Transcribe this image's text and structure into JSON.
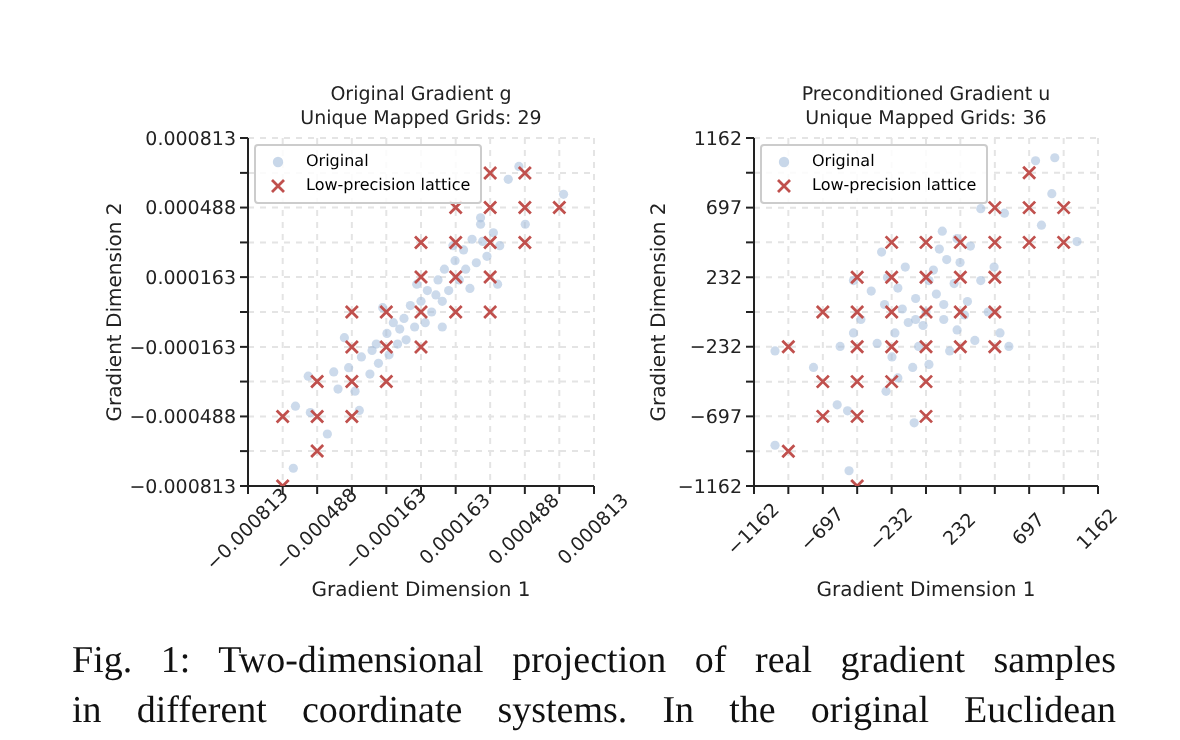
{
  "chart_data": [
    {
      "type": "scatter",
      "title": "Original Gradient g",
      "subtitle": "Unique Mapped Grids: 29",
      "xlabel": "Gradient Dimension 1",
      "ylabel": "Gradient Dimension 2",
      "xlim": [
        -0.000813,
        0.000813
      ],
      "ylim": [
        -0.000813,
        0.000813
      ],
      "xticks": [
        {
          "value": -0.000813,
          "label": "−0.000813"
        },
        {
          "value": -0.00065,
          "label": null
        },
        {
          "value": -0.000488,
          "label": "−0.000488"
        },
        {
          "value": -0.000325,
          "label": null
        },
        {
          "value": -0.000163,
          "label": "−0.000163"
        },
        {
          "value": 0,
          "label": null
        },
        {
          "value": 0.000163,
          "label": "0.000163"
        },
        {
          "value": 0.000325,
          "label": null
        },
        {
          "value": 0.000488,
          "label": "0.000488"
        },
        {
          "value": 0.00065,
          "label": null
        },
        {
          "value": 0.000813,
          "label": "0.000813"
        }
      ],
      "yticks": [
        {
          "value": -0.000813,
          "label": "−0.000813"
        },
        {
          "value": -0.00065,
          "label": null
        },
        {
          "value": -0.000488,
          "label": "−0.000488"
        },
        {
          "value": -0.000325,
          "label": null
        },
        {
          "value": -0.000163,
          "label": "−0.000163"
        },
        {
          "value": 0,
          "label": null
        },
        {
          "value": 0.000163,
          "label": "0.000163"
        },
        {
          "value": 0.000325,
          "label": null
        },
        {
          "value": 0.000488,
          "label": "0.000488"
        },
        {
          "value": 0.00065,
          "label": null
        },
        {
          "value": 0.000813,
          "label": "0.000813"
        }
      ],
      "grid": true,
      "legend": "top left",
      "series": [
        {
          "name": "Original",
          "color": "#a3bcdb",
          "marker": "circle",
          "x": [
            -0.0006,
            -0.00059,
            -0.00052,
            -0.00044,
            -0.00053,
            -0.00041,
            0.00067,
            0.00046,
            0.00049,
            0.00041,
            0.00028,
            -0.00039,
            -0.00034,
            -0.00031,
            -0.00028,
            -0.00024,
            -0.00021,
            -0.0002,
            -0.00016,
            -0.00015,
            -0.00013,
            -0.00011,
            -8e-05,
            -7e-05,
            -5e-05,
            -3e-05,
            0,
            2e-05,
            3e-05,
            5e-05,
            8e-05,
            0.0001,
            0.00011,
            0.00013,
            0.00016,
            0.00018,
            0.0002,
            0.00021,
            0.00024,
            0.00026,
            0.00029,
            0.00031,
            0.00034,
            0.00037,
            7e-05,
            -0.0001,
            -0.00023,
            0.00023,
            0.00015,
            -2e-05,
            -0.00018,
            0.0001,
            -0.00036,
            0.00036,
            -0.00029,
            0.00028
          ],
          "values": [
            -0.00073,
            -0.00044,
            -0.00047,
            -0.00057,
            -0.0003,
            -0.00028,
            0.00055,
            0.00068,
            0.00041,
            0.00062,
            0.00041,
            -0.00036,
            -0.00026,
            -0.00037,
            -0.00021,
            -0.00029,
            -0.00015,
            -0.00024,
            -0.0001,
            -0.0002,
            -5e-05,
            -0.00015,
            -3e-05,
            -0.00013,
            3e-05,
            -7e-05,
            5e-05,
            -5e-05,
            0.0001,
            0,
            0.00015,
            5e-05,
            0.0002,
            0.0001,
            0.00024,
            0.00015,
            0.00029,
            0.0002,
            0.00034,
            0.00023,
            0.00033,
            0.00026,
            0.00037,
            0.00031,
            8e-05,
            -8e-05,
            -0.00018,
            0.00011,
            0.00031,
            0.00013,
            2e-05,
            -7e-05,
            -0.00012,
            0.00013,
            -0.00046,
            0.00044
          ]
        },
        {
          "name": "Low-precision lattice",
          "color": "#c0504d",
          "marker": "cross",
          "x": [
            0.000325,
            0.000488,
            0.000163,
            0.000325,
            0.000488,
            0.00065,
            0,
            0.000163,
            0.000325,
            0.000488,
            0,
            0.000163,
            0.000325,
            -0.000325,
            -0.000163,
            0,
            0.000163,
            0.000325,
            -0.000325,
            -0.000163,
            0,
            -0.000488,
            -0.000325,
            -0.000163,
            -0.00065,
            -0.000488,
            -0.000325,
            -0.000488,
            -0.00065
          ],
          "values": [
            0.00065,
            0.00065,
            0.000488,
            0.000488,
            0.000488,
            0.000488,
            0.000325,
            0.000325,
            0.000325,
            0.000325,
            0.000163,
            0.000163,
            0.000163,
            0,
            0,
            0,
            0,
            0,
            -0.000163,
            -0.000163,
            -0.000163,
            -0.000325,
            -0.000325,
            -0.000325,
            -0.000488,
            -0.000488,
            -0.000488,
            -0.00065,
            -0.000813
          ]
        }
      ],
      "annotations": [
        "Fig. 1: Two-dimensional projection of real gradient samples in different coordinate systems. In the original Euclidean"
      ]
    },
    {
      "type": "scatter",
      "title": "Preconditioned Gradient u",
      "subtitle": "Unique Mapped Grids: 36",
      "xlabel": "Gradient Dimension 1",
      "ylabel": "Gradient Dimension 2",
      "xlim": [
        -1162,
        1162
      ],
      "ylim": [
        -1162,
        1162
      ],
      "xticks": [
        {
          "value": -1162,
          "label": "−1162"
        },
        {
          "value": -930,
          "label": null
        },
        {
          "value": -697,
          "label": "−697"
        },
        {
          "value": -465,
          "label": null
        },
        {
          "value": -232,
          "label": "−232"
        },
        {
          "value": 0,
          "label": null
        },
        232,
        {
          "value": 465,
          "label": null
        },
        697,
        {
          "value": 930,
          "label": null
        },
        1162
      ],
      "yticks": [
        {
          "value": -1162,
          "label": "−1162"
        },
        {
          "value": -930,
          "label": null
        },
        {
          "value": -697,
          "label": "−697"
        },
        {
          "value": -465,
          "label": null
        },
        {
          "value": -232,
          "label": "−232"
        },
        {
          "value": 0,
          "label": null
        },
        232,
        {
          "value": 465,
          "label": null
        },
        697,
        {
          "value": 930,
          "label": null
        },
        1162
      ],
      "grid": true,
      "legend": "top left",
      "series": [
        {
          "name": "Original",
          "color": "#a3bcdb",
          "marker": "circle",
          "x": [
            -1020,
            -1020,
            -760,
            -600,
            -530,
            -520,
            -580,
            -490,
            740,
            870,
            850,
            780,
            530,
            370,
            1020,
            560,
            500,
            110,
            -80,
            -270,
            0,
            70,
            -70,
            120,
            -120,
            190,
            -190,
            210,
            -210,
            50,
            -50,
            280,
            -280,
            140,
            -140,
            330,
            -330,
            20,
            370,
            -370,
            90,
            -90,
            230,
            -230,
            420,
            -440,
            160,
            -160,
            20,
            -20,
            260,
            -260,
            120,
            -70,
            460,
            -490,
            300,
            -300,
            210,
            -190
          ],
          "values": [
            -260,
            -890,
            -370,
            -620,
            -660,
            -1060,
            -230,
            -140,
            1010,
            1030,
            790,
            580,
            660,
            690,
            470,
            -230,
            -140,
            540,
            -740,
            -530,
            0,
            120,
            90,
            -50,
            -70,
            190,
            160,
            -120,
            -140,
            280,
            -230,
            70,
            50,
            350,
            300,
            -190,
            -210,
            -350,
            210,
            140,
            420,
            -370,
            330,
            -300,
            0,
            -50,
            -260,
            20,
            210,
            -90,
            -20,
            230,
            50,
            -50,
            300,
            210,
            440,
            400,
            490,
            -440
          ]
        },
        {
          "name": "Low-precision lattice",
          "color": "#c0504d",
          "marker": "cross",
          "x": [
            697,
            465,
            697,
            930,
            -232,
            0,
            232,
            465,
            697,
            930,
            -465,
            -232,
            0,
            232,
            465,
            -697,
            -465,
            -232,
            0,
            232,
            465,
            -930,
            -465,
            -232,
            0,
            232,
            465,
            -697,
            -465,
            -232,
            0,
            -697,
            -465,
            0,
            -930,
            -465
          ],
          "values": [
            930,
            697,
            697,
            697,
            465,
            465,
            465,
            465,
            465,
            465,
            232,
            232,
            232,
            232,
            232,
            0,
            0,
            0,
            0,
            0,
            0,
            -232,
            -232,
            -232,
            -232,
            -232,
            -232,
            -465,
            -465,
            -465,
            -465,
            -697,
            -697,
            -697,
            -930,
            -1162
          ]
        }
      ]
    }
  ]
}
